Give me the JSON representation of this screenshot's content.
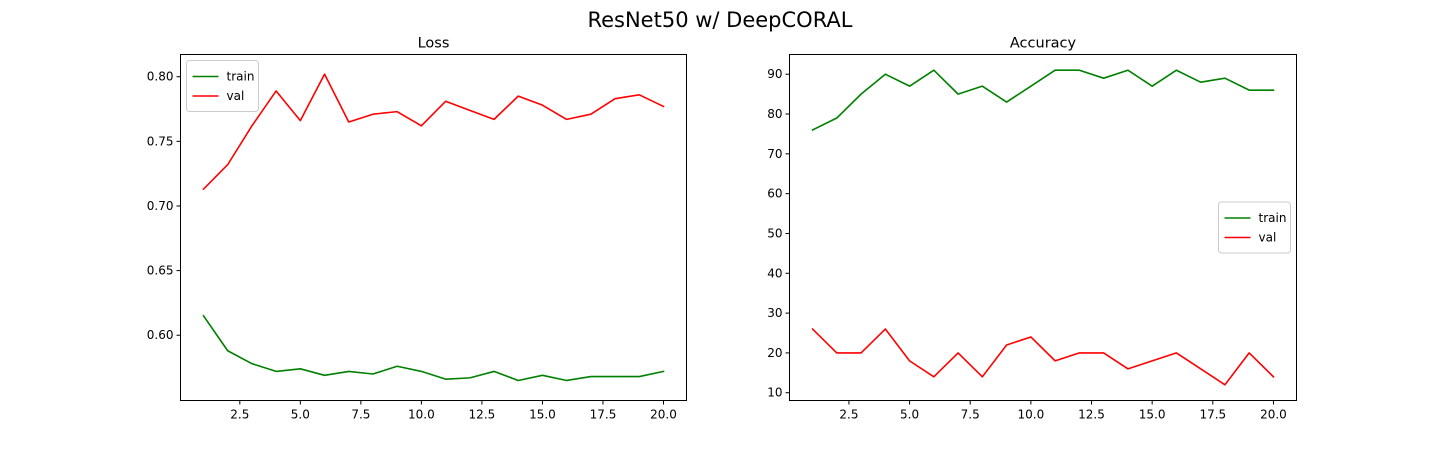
{
  "figure": {
    "suptitle": "ResNet50 w/ DeepCORAL"
  },
  "chart_data": [
    {
      "type": "line",
      "title": "Loss",
      "xlabel": "",
      "ylabel": "",
      "xlim": [
        0.05,
        20.95
      ],
      "ylim": [
        0.5495,
        0.8172
      ],
      "xticks": [
        2.5,
        5.0,
        7.5,
        10.0,
        12.5,
        15.0,
        17.5,
        20.0
      ],
      "xtick_labels": [
        "2.5",
        "5.0",
        "7.5",
        "10.0",
        "12.5",
        "15.0",
        "17.5",
        "20.0"
      ],
      "yticks": [
        0.6,
        0.65,
        0.7,
        0.75,
        0.8
      ],
      "ytick_labels": [
        "0.60",
        "0.65",
        "0.70",
        "0.75",
        "0.80"
      ],
      "legend": "upper-left",
      "grid": false,
      "x": [
        1,
        2,
        3,
        4,
        5,
        6,
        7,
        8,
        9,
        10,
        11,
        12,
        13,
        14,
        15,
        16,
        17,
        18,
        19,
        20
      ],
      "series": [
        {
          "name": "train",
          "color": "#008000",
          "values": [
            0.615,
            0.588,
            0.578,
            0.572,
            0.574,
            0.569,
            0.572,
            0.57,
            0.576,
            0.572,
            0.566,
            0.567,
            0.572,
            0.565,
            0.569,
            0.565,
            0.568,
            0.568,
            0.568,
            0.572
          ]
        },
        {
          "name": "val",
          "color": "#ff0000",
          "values": [
            0.713,
            0.732,
            0.762,
            0.789,
            0.766,
            0.802,
            0.765,
            0.771,
            0.773,
            0.762,
            0.781,
            0.774,
            0.767,
            0.785,
            0.778,
            0.767,
            0.771,
            0.783,
            0.786,
            0.777
          ]
        }
      ]
    },
    {
      "type": "line",
      "title": "Accuracy",
      "xlabel": "",
      "ylabel": "",
      "xlim": [
        0.05,
        20.95
      ],
      "ylim": [
        8.05,
        94.95
      ],
      "xticks": [
        2.5,
        5.0,
        7.5,
        10.0,
        12.5,
        15.0,
        17.5,
        20.0
      ],
      "xtick_labels": [
        "2.5",
        "5.0",
        "7.5",
        "10.0",
        "12.5",
        "15.0",
        "17.5",
        "20.0"
      ],
      "yticks": [
        10,
        20,
        30,
        40,
        50,
        60,
        70,
        80,
        90
      ],
      "ytick_labels": [
        "10",
        "20",
        "30",
        "40",
        "50",
        "60",
        "70",
        "80",
        "90"
      ],
      "legend": "center-right",
      "grid": false,
      "x": [
        1,
        2,
        3,
        4,
        5,
        6,
        7,
        8,
        9,
        10,
        11,
        12,
        13,
        14,
        15,
        16,
        17,
        18,
        19,
        20
      ],
      "series": [
        {
          "name": "train",
          "color": "#008000",
          "values": [
            76,
            79,
            85,
            90,
            87,
            91,
            85,
            87,
            83,
            87,
            91,
            91,
            89,
            91,
            87,
            91,
            88,
            89,
            86,
            86
          ]
        },
        {
          "name": "val",
          "color": "#ff0000",
          "values": [
            26,
            20,
            20,
            26,
            18,
            14,
            20,
            14,
            22,
            24,
            18,
            20,
            20,
            16,
            18,
            20,
            16,
            12,
            20,
            14
          ]
        }
      ]
    }
  ]
}
